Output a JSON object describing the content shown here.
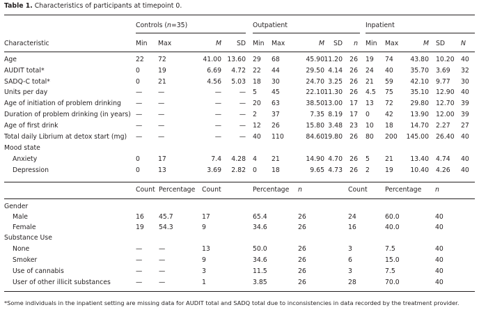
{
  "caption": {
    "label": "Table 1.",
    "text": "Characteristics of participants at timepoint 0."
  },
  "groups": {
    "controls_prefix": "Controls (",
    "controls_n": "n",
    "controls_suffix": "=35)",
    "outpatient": "Outpatient",
    "inpatient": "Inpatient"
  },
  "header1": [
    "Characteristic",
    "Min",
    "Max",
    "M",
    "SD",
    "Min",
    "Max",
    "M",
    "SD",
    "n",
    "Min",
    "Max",
    "M",
    "SD",
    "N"
  ],
  "rows1": [
    [
      "Age",
      "22",
      "72",
      "41.00",
      "13.60",
      "29",
      "68",
      "45.90",
      "11.20",
      "26",
      "19",
      "74",
      "43.80",
      "10.20",
      "40"
    ],
    [
      "AUDIT total*",
      "0",
      "19",
      "6.69",
      "4.72",
      "22",
      "44",
      "29.50",
      "4.14",
      "26",
      "24",
      "40",
      "35.70",
      "3.69",
      "32"
    ],
    [
      "SADQ-C total*",
      "0",
      "21",
      "4.56",
      "5.03",
      "18",
      "30",
      "24.70",
      "3.25",
      "26",
      "21",
      "59",
      "42.10",
      "9.77",
      "30"
    ],
    [
      "Units per day",
      "—",
      "—",
      "—",
      "—",
      "5",
      "45",
      "22.10",
      "11.30",
      "26",
      "4.5",
      "75",
      "35.10",
      "12.90",
      "40"
    ],
    [
      "Age of initiation of problem drinking",
      "—",
      "—",
      "—",
      "—",
      "20",
      "63",
      "38.50",
      "13.00",
      "17",
      "13",
      "72",
      "29.80",
      "12.70",
      "39"
    ],
    [
      "Duration of problem drinking (in years)",
      "—",
      "—",
      "—",
      "—",
      "2",
      "37",
      "7.35",
      "8.19",
      "17",
      "0",
      "42",
      "13.90",
      "12.00",
      "39"
    ],
    [
      "Age of first drink",
      "—",
      "—",
      "—",
      "—",
      "12",
      "26",
      "15.80",
      "3.48",
      "23",
      "10",
      "18",
      "14.70",
      "2.27",
      "27"
    ],
    [
      "Total daily Librium at detox start (mg)",
      "—",
      "—",
      "—",
      "—",
      "40",
      "110",
      "84.60",
      "19.80",
      "26",
      "80",
      "200",
      "145.00",
      "26.40",
      "40"
    ],
    [
      "Mood state",
      "",
      "",
      "",
      "",
      "",
      "",
      "",
      "",
      "",
      "",
      "",
      "",
      "",
      ""
    ],
    [
      "Anxiety",
      "0",
      "17",
      "7.4",
      "4.28",
      "4",
      "21",
      "14.90",
      "4.70",
      "26",
      "5",
      "21",
      "13.40",
      "4.74",
      "40"
    ],
    [
      "Depression",
      "0",
      "13",
      "3.69",
      "2.82",
      "0",
      "18",
      "9.65",
      "4.73",
      "26",
      "2",
      "19",
      "10.40",
      "4.26",
      "40"
    ]
  ],
  "header2": [
    "Count",
    "Percentage",
    "Count",
    "Percentage",
    "n",
    "Count",
    "Percentage",
    "n"
  ],
  "rows2": [
    [
      "Gender",
      "",
      "",
      "",
      "",
      "",
      "",
      "",
      ""
    ],
    [
      "Male",
      "16",
      "45.7",
      "17",
      "65.4",
      "26",
      "24",
      "60.0",
      "40"
    ],
    [
      "Female",
      "19",
      "54.3",
      "9",
      "34.6",
      "26",
      "16",
      "40.0",
      "40"
    ],
    [
      "Substance Use",
      "",
      "",
      "",
      "",
      "",
      "",
      "",
      ""
    ],
    [
      "None",
      "—",
      "—",
      "13",
      "50.0",
      "26",
      "3",
      "7.5",
      "40"
    ],
    [
      "Smoker",
      "—",
      "—",
      "9",
      "34.6",
      "26",
      "6",
      "15.0",
      "40"
    ],
    [
      "Use of cannabis",
      "—",
      "—",
      "3",
      "11.5",
      "26",
      "3",
      "7.5",
      "40"
    ],
    [
      "User of other illicit substances",
      "—",
      "—",
      "1",
      "3.85",
      "26",
      "28",
      "70.0",
      "40"
    ]
  ],
  "footnote": "*Some individuals in the inpatient setting are missing data for AUDIT total and SADQ total due to inconsistencies in data recorded by the treatment provider."
}
